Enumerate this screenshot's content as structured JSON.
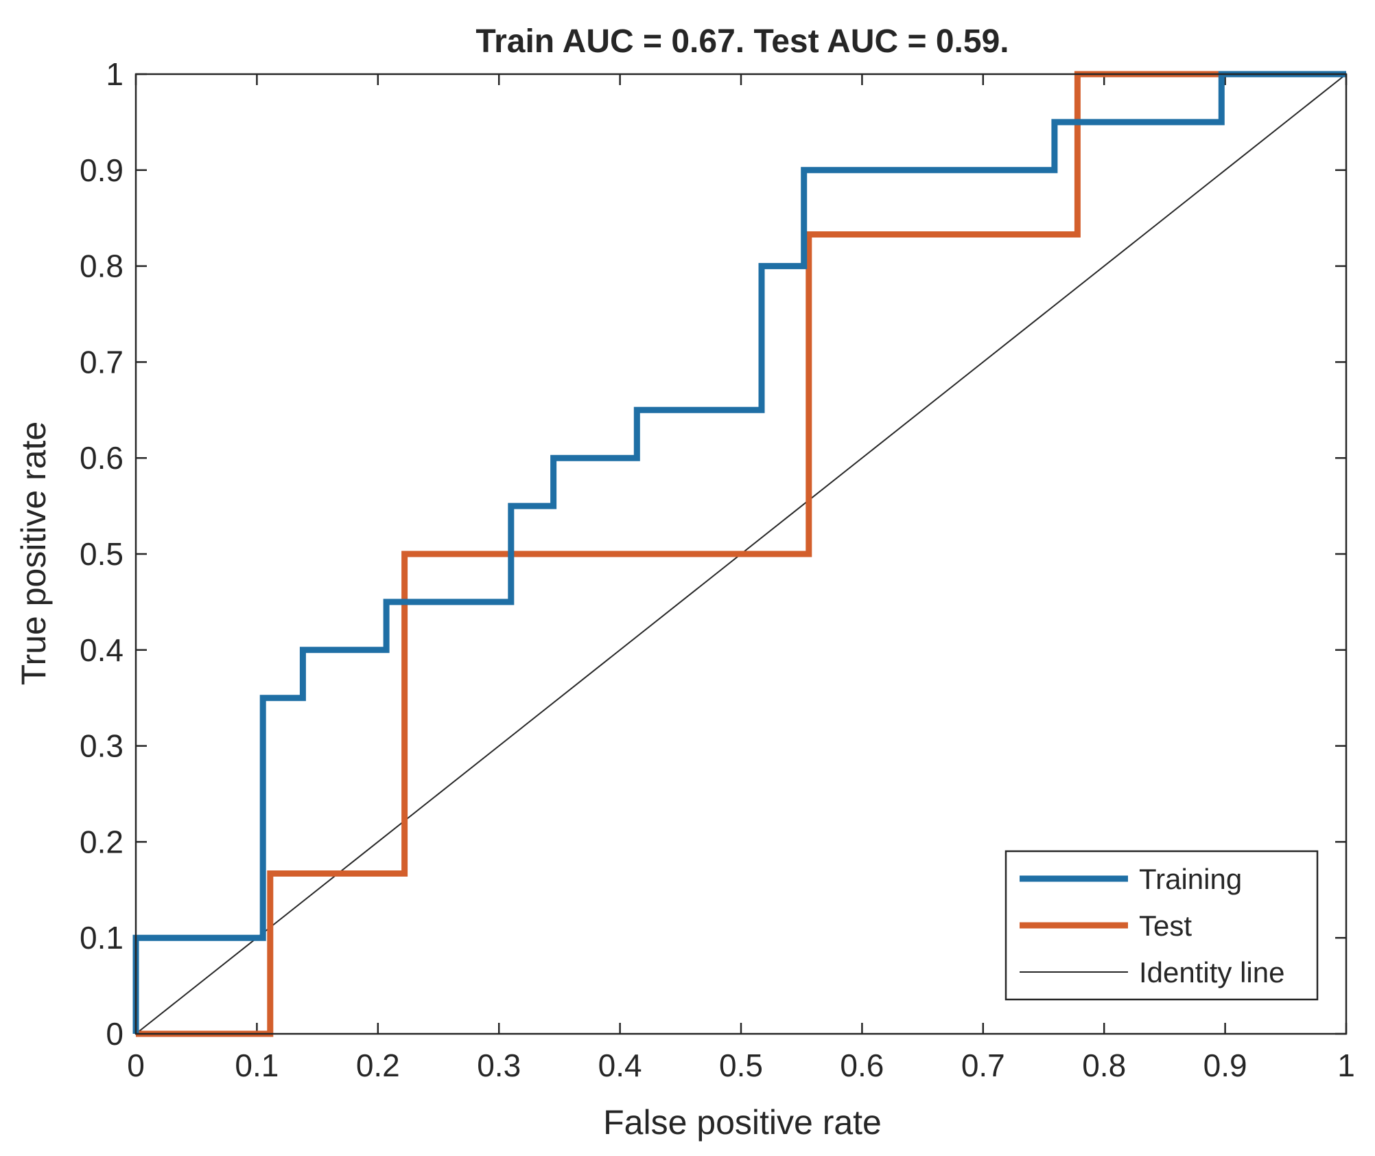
{
  "chart_data": {
    "type": "line",
    "title": "Train AUC = 0.67. Test AUC = 0.59.",
    "xlabel": "False positive rate",
    "ylabel": "True positive rate",
    "xlim": [
      0,
      1
    ],
    "ylim": [
      0,
      1
    ],
    "xticks": [
      0,
      0.1,
      0.2,
      0.3,
      0.4,
      0.5,
      0.6,
      0.7,
      0.8,
      0.9,
      1
    ],
    "yticks": [
      0,
      0.1,
      0.2,
      0.3,
      0.4,
      0.5,
      0.6,
      0.7,
      0.8,
      0.9,
      1
    ],
    "xtick_labels": [
      "0",
      "0.1",
      "0.2",
      "0.3",
      "0.4",
      "0.5",
      "0.6",
      "0.7",
      "0.8",
      "0.9",
      "1"
    ],
    "ytick_labels": [
      "0",
      "0.1",
      "0.2",
      "0.3",
      "0.4",
      "0.5",
      "0.6",
      "0.7",
      "0.8",
      "0.9",
      "1"
    ],
    "grid": false,
    "legend_position": "bottom-right",
    "series": [
      {
        "name": "Training",
        "color": "#1f6fa5",
        "x": [
          0,
          0,
          0.105,
          0.105,
          0.138,
          0.138,
          0.207,
          0.207,
          0.31,
          0.31,
          0.345,
          0.345,
          0.414,
          0.414,
          0.517,
          0.517,
          0.552,
          0.552,
          0.759,
          0.759,
          0.897,
          0.897,
          1
        ],
        "y": [
          0,
          0.1,
          0.1,
          0.35,
          0.35,
          0.4,
          0.4,
          0.45,
          0.45,
          0.55,
          0.55,
          0.6,
          0.6,
          0.65,
          0.65,
          0.8,
          0.8,
          0.9,
          0.9,
          0.95,
          0.95,
          1,
          1
        ]
      },
      {
        "name": "Test",
        "color": "#d35f2c",
        "x": [
          0,
          0.111,
          0.111,
          0.222,
          0.222,
          0.556,
          0.556,
          0.778,
          0.778,
          1
        ],
        "y": [
          0,
          0,
          0.167,
          0.167,
          0.5,
          0.5,
          0.833,
          0.833,
          1,
          1
        ]
      },
      {
        "name": "Identity line",
        "color": "#262626",
        "x": [
          0,
          1
        ],
        "y": [
          0,
          1
        ]
      }
    ]
  }
}
